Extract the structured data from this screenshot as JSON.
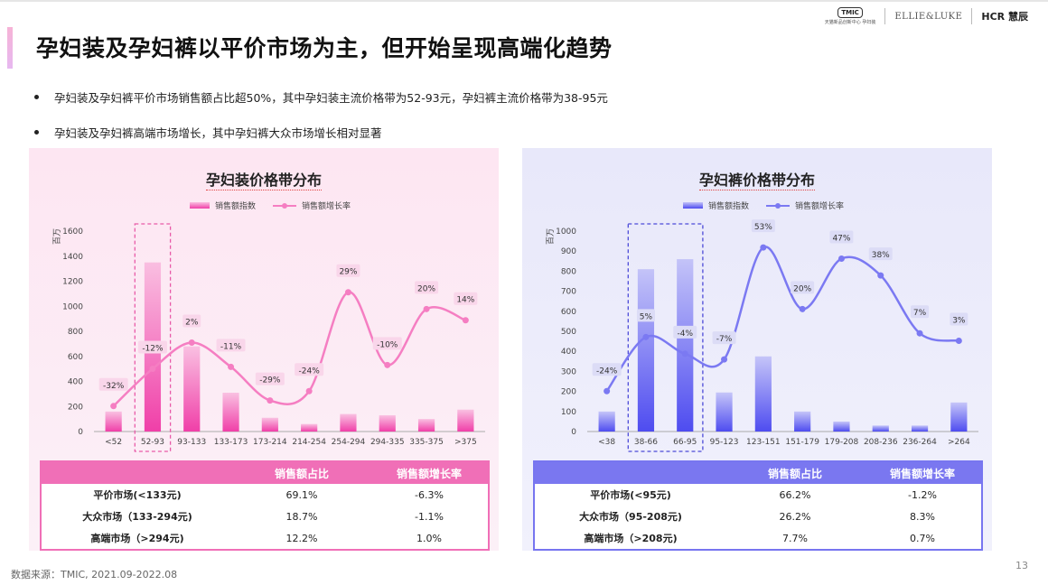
{
  "title": "孕妇装及孕妇裤以平价市场为主，但开始呈现高端化趋势",
  "logos": {
    "tmic": "TMIC",
    "tmic_sub": "天猫新品创新中心 孕妇装",
    "ellie": "ELLIE&LUKE",
    "hcr": "HCR 慧辰"
  },
  "bullets": [
    "孕妇装及孕妇裤平价市场销售额占比超50%，其中孕妇装主流价格带为52-93元，孕妇裤主流价格带为38-95元",
    "孕妇装及孕妇裤高端市场增长，其中孕妇裤大众市场增长相对显著"
  ],
  "colors": {
    "pink": "#f03fa8",
    "pink_line": "#f57ec2",
    "blue": "#4e4cf0",
    "blue_line": "#7b79f2"
  },
  "chart_data": [
    {
      "type": "bar",
      "title": "孕妇装价格带分布",
      "legend": [
        "销售额指数",
        "销售额增长率"
      ],
      "ylabel": "百万",
      "ylim": [
        0,
        1600
      ],
      "yticks": [
        0,
        200,
        400,
        600,
        800,
        1000,
        1200,
        1400,
        1600
      ],
      "categories": [
        "<52",
        "52-93",
        "93-133",
        "133-173",
        "173-214",
        "214-254",
        "254-294",
        "294-335",
        "335-375",
        ">375"
      ],
      "highlight": [
        1
      ],
      "series": [
        {
          "name": "销售额指数",
          "type": "bar",
          "values": [
            160,
            1350,
            680,
            310,
            110,
            60,
            140,
            130,
            100,
            175
          ]
        },
        {
          "name": "销售额增长率",
          "type": "line",
          "labels": [
            "-32%",
            "-12%",
            "2%",
            "-11%",
            "-29%",
            "-24%",
            "29%",
            "-10%",
            "20%",
            "14%"
          ],
          "values": [
            -32,
            -12,
            2,
            -11,
            -29,
            -24,
            29,
            -10,
            20,
            14
          ]
        }
      ],
      "table": {
        "headers": [
          "",
          "销售额占比",
          "销售额增长率"
        ],
        "rows": [
          [
            "平价市场(<133元)",
            "69.1%",
            "-6.3%"
          ],
          [
            "大众市场（133-294元)",
            "18.7%",
            "-1.1%"
          ],
          [
            "高端市场（>294元)",
            "12.2%",
            "1.0%"
          ]
        ]
      }
    },
    {
      "type": "bar",
      "title": "孕妇裤价格带分布",
      "legend": [
        "销售额指数",
        "销售额增长率"
      ],
      "ylabel": "百万",
      "ylim": [
        0,
        1000
      ],
      "yticks": [
        0,
        100,
        200,
        300,
        400,
        500,
        600,
        700,
        800,
        900,
        1000
      ],
      "categories": [
        "<38",
        "38-66",
        "66-95",
        "95-123",
        "123-151",
        "151-179",
        "179-208",
        "208-236",
        "236-264",
        ">264"
      ],
      "highlight": [
        1,
        2
      ],
      "series": [
        {
          "name": "销售额指数",
          "type": "bar",
          "values": [
            100,
            810,
            860,
            195,
            375,
            100,
            50,
            30,
            30,
            145
          ]
        },
        {
          "name": "销售额增长率",
          "type": "line",
          "labels": [
            "-24%",
            "5%",
            "-4%",
            "-7%",
            "53%",
            "20%",
            "47%",
            "38%",
            "7%",
            "3%"
          ],
          "values": [
            -24,
            5,
            -4,
            -7,
            53,
            20,
            47,
            38,
            7,
            3
          ]
        }
      ],
      "table": {
        "headers": [
          "",
          "销售额占比",
          "销售额增长率"
        ],
        "rows": [
          [
            "平价市场(<95元)",
            "66.2%",
            "-1.2%"
          ],
          [
            "大众市场（95-208元)",
            "26.2%",
            "8.3%"
          ],
          [
            "高端市场（>208元)",
            "7.7%",
            "0.7%"
          ]
        ]
      }
    }
  ],
  "footer": {
    "source": "数据来源：TMIC, 2021.09-2022.08",
    "page": "13"
  }
}
